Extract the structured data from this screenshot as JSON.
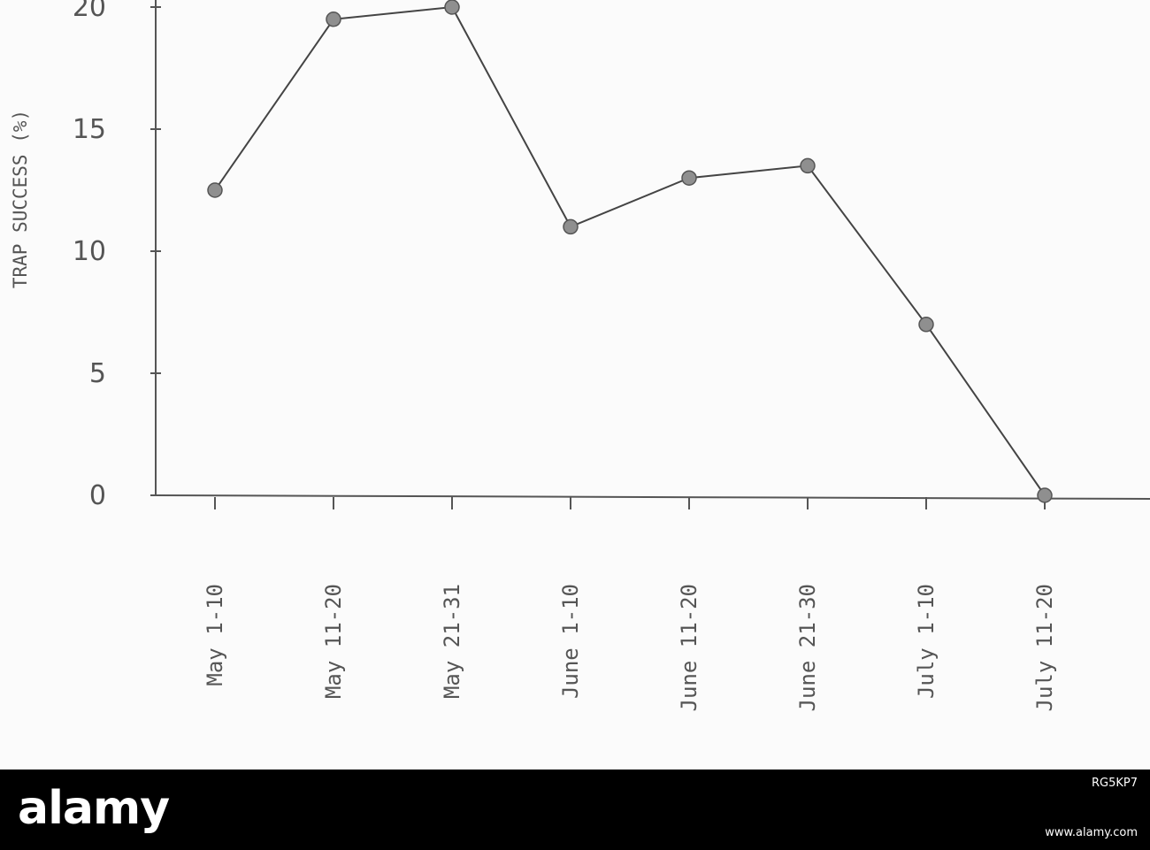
{
  "chart_data": {
    "type": "line",
    "title": "",
    "ylabel": "TRAP SUCCESS (%)",
    "xlabel": "",
    "categories": [
      "May 1-10",
      "May 11-20",
      "May 21-31",
      "June 1-10",
      "June 11-20",
      "June 21-30",
      "July 1-10",
      "July 11-20"
    ],
    "values": [
      12.5,
      19.5,
      20,
      11,
      13,
      13.5,
      7,
      0
    ],
    "ylim": [
      0,
      20
    ],
    "yticks": [
      0,
      5,
      10,
      15,
      20
    ],
    "grid": false,
    "legend": "none",
    "colors": {
      "line": "#444444",
      "marker": "#8f8f8f",
      "axis": "#555555",
      "text": "#555555"
    }
  },
  "watermark": {
    "logo": "alamy",
    "image_id": "RG5KP7",
    "url": "www.alamy.com"
  }
}
